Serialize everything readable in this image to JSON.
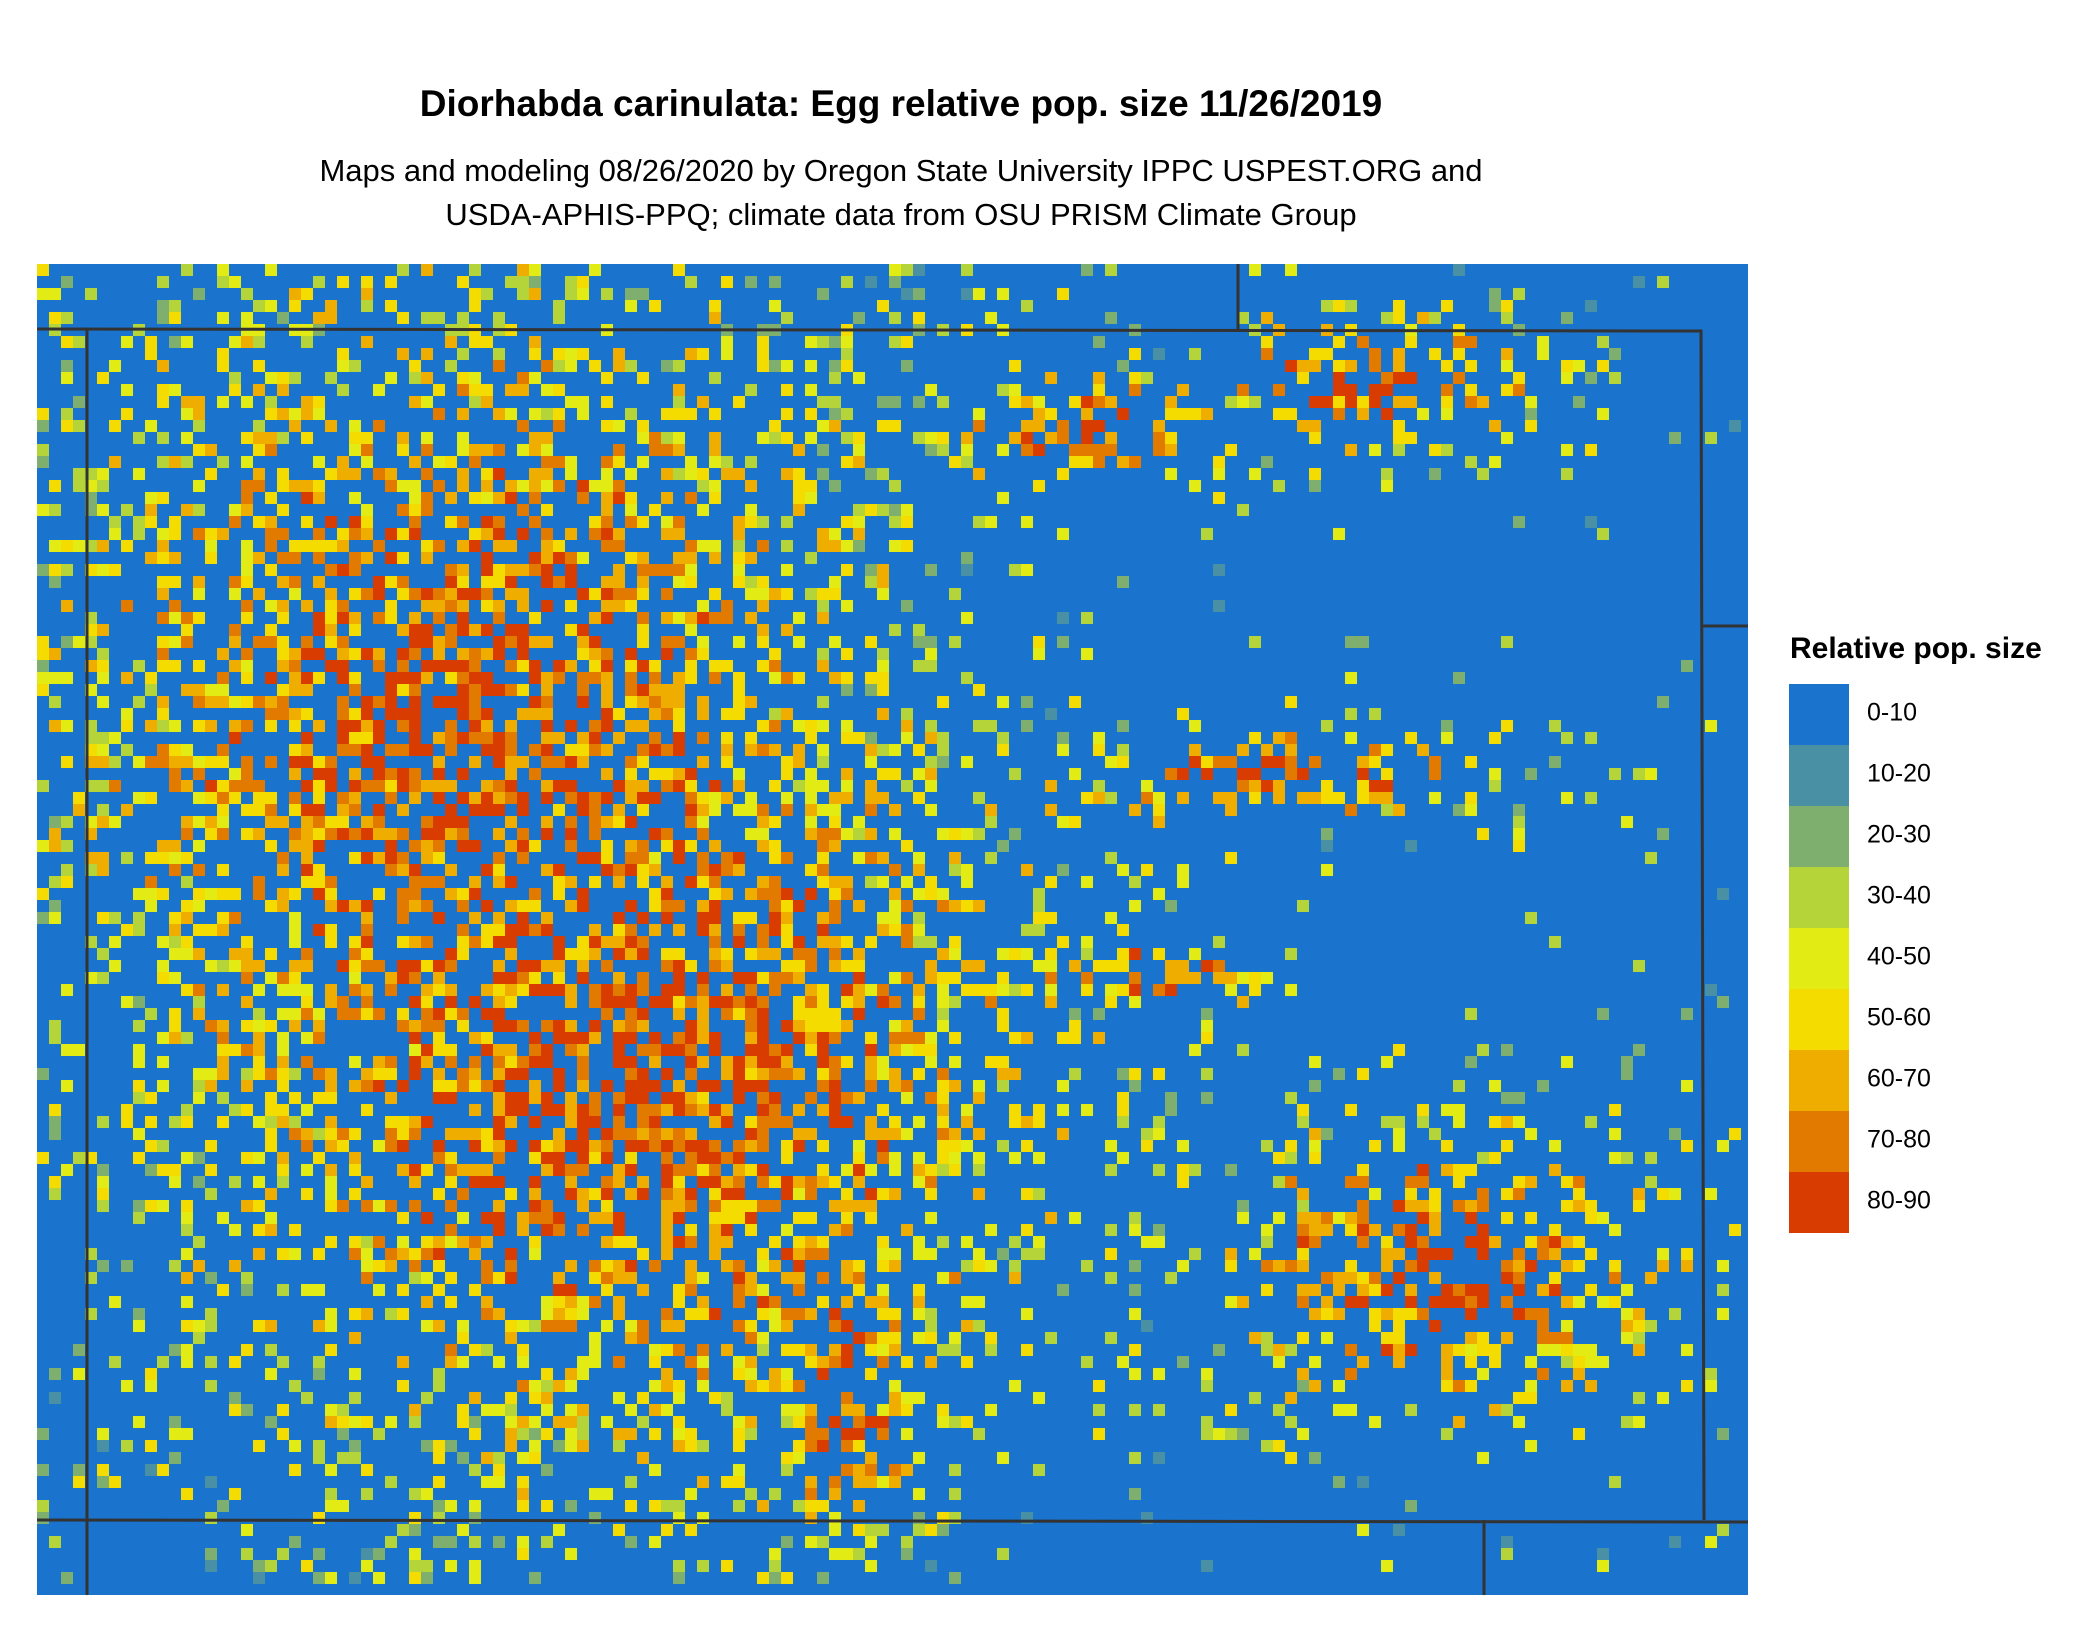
{
  "header": {
    "title": "Diorhabda carinulata: Egg relative pop. size 11/26/2019",
    "subtitle_lines": [
      "Maps and modeling 08/26/2020 by Oregon State University IPPC USPEST.ORG and",
      "USDA-APHIS-PPQ; climate data from OSU PRISM Climate Group"
    ]
  },
  "legend": {
    "title": "Relative pop. size",
    "items": [
      {
        "label": "0-10",
        "color": "#1a73cc"
      },
      {
        "label": "10-20",
        "color": "#4a90a4"
      },
      {
        "label": "20-30",
        "color": "#7faf6f"
      },
      {
        "label": "30-40",
        "color": "#b5d43a"
      },
      {
        "label": "40-50",
        "color": "#e2ec14"
      },
      {
        "label": "50-60",
        "color": "#f5dc00"
      },
      {
        "label": "60-70",
        "color": "#efad00"
      },
      {
        "label": "70-80",
        "color": "#e37a00"
      },
      {
        "label": "80-90",
        "color": "#d93c00"
      }
    ]
  }
}
